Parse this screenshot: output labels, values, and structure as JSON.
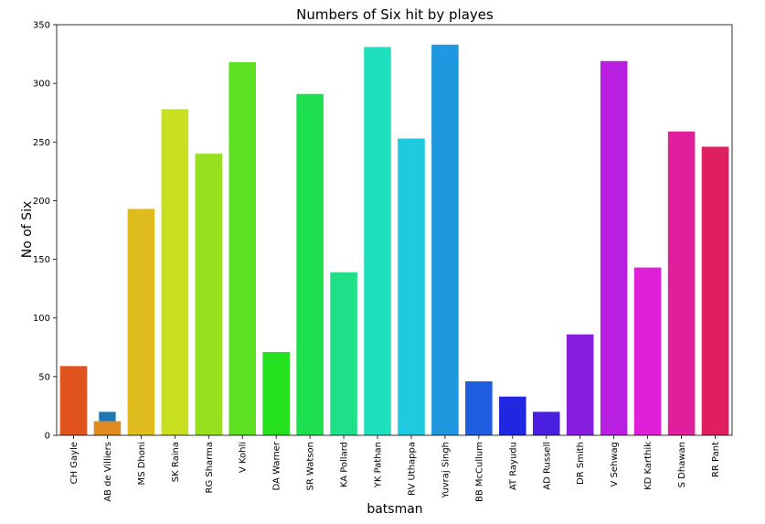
{
  "chart_data": {
    "type": "bar",
    "title": "Numbers of Six hit by playes",
    "xlabel": "batsman",
    "ylabel": "No of Six",
    "ylim": [
      0,
      350
    ],
    "yticks": [
      0,
      50,
      100,
      150,
      200,
      250,
      300,
      350
    ],
    "grid": false,
    "categories": [
      "CH Gayle",
      "AB de Villiers",
      "MS Dhoni",
      "SK Raina",
      "RG Sharma",
      "V Kohli",
      "DA Warner",
      "SR Watson",
      "KA Pollard",
      "YK Pathan",
      "RV Uthappa",
      "Yuvraj Singh",
      "BB McCullum",
      "AT Rayudu",
      "AD Russell",
      "DR Smith",
      "V Sehwag",
      "KD Karthik",
      "S Dhawan",
      "RR Pant"
    ],
    "values": [
      59,
      12,
      193,
      278,
      240,
      318,
      71,
      291,
      139,
      331,
      253,
      333,
      46,
      33,
      20,
      86,
      319,
      143,
      259,
      246
    ],
    "colors": [
      "#e0531f",
      "#e08a1f",
      "#e0bd1f",
      "#c8e01f",
      "#96e01f",
      "#5de01f",
      "#25e01f",
      "#1fe04f",
      "#1fe088",
      "#1fe0bc",
      "#1fc9e0",
      "#1f98e0",
      "#1f5de0",
      "#1f27e0",
      "#4a1fe0",
      "#861fe0",
      "#b81fe0",
      "#e01fd8",
      "#e01f9c",
      "#e01f5e"
    ],
    "overlay_bar": {
      "category": "AB de Villiers",
      "value": 20,
      "color": "#1f77b4"
    }
  }
}
